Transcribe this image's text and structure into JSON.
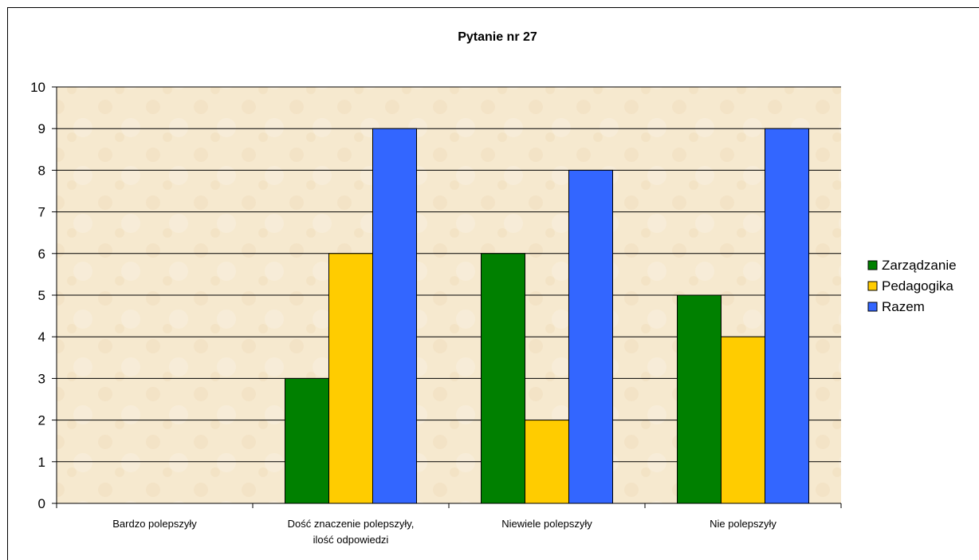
{
  "chart_data": {
    "type": "bar",
    "title": "Pytanie nr 27",
    "xlabel": "",
    "ylabel": "",
    "categories": [
      [
        "Bardzo polepszyły"
      ],
      [
        "Dość znaczenie polepszyły,",
        "ilość odpowiedzi"
      ],
      [
        "Niewiele polepszyły"
      ],
      [
        "Nie polepszyły"
      ]
    ],
    "series": [
      {
        "name": "Zarządzanie",
        "color": "#008000",
        "values": [
          0,
          3,
          6,
          5
        ]
      },
      {
        "name": "Pedagogika",
        "color": "#FFCC00",
        "values": [
          0,
          6,
          2,
          4
        ]
      },
      {
        "name": "Razem",
        "color": "#3366FF",
        "values": [
          0,
          9,
          8,
          9
        ]
      }
    ],
    "ylim": [
      0,
      10
    ],
    "yticks": [
      0,
      1,
      2,
      3,
      4,
      5,
      6,
      7,
      8,
      9,
      10
    ],
    "grid": true,
    "legend": "right",
    "plot_background": "#F6E9CF"
  }
}
